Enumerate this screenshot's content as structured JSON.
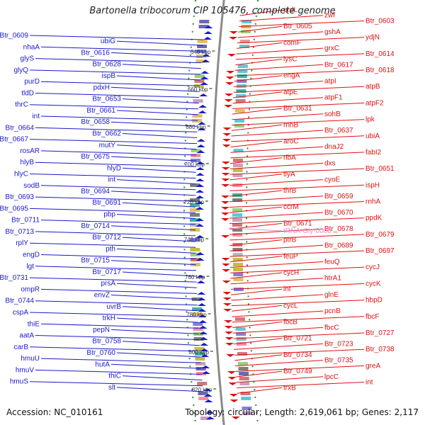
{
  "title": "Bartonella tribocorum CIP 105476, complete genome",
  "footer": {
    "accession": "Accession: NC_010161",
    "summary": "Topology: circular; Length: 2,619,061 bp; Genes: 2,117"
  },
  "colors": {
    "reverse_strand": "#1a1acc",
    "forward_strand": "#dd1111",
    "rna_gene": "#e890c8",
    "backbone": "#8a8a8a",
    "tick": "#2e8b2e"
  },
  "ticks": [
    "640 kbp",
    "660 kbp",
    "680 kbp",
    "700 kbp",
    "720 kbp",
    "740 kbp",
    "760 kbp",
    "780 kbp",
    "800 kbp",
    "820 kbp"
  ],
  "left_genes": [
    "Btr_0609",
    "ubiG",
    "nhaA",
    "Btr_0616",
    "glyS",
    "Btr_0628",
    "glyQ",
    "ispB",
    "purD",
    "pdxH",
    "tldD",
    "Btr_0653",
    "thrC",
    "Btr_0661",
    "int",
    "Btr_0658",
    "Btr_0664",
    "Btr_0662",
    "Btr_0667",
    "mutY",
    "rosAR",
    "Btr_0675",
    "hlyB",
    "hlyD",
    "hlyC",
    "int",
    "sodB",
    "Btr_0694",
    "Btr_0693",
    "Btr_0691",
    "Btr_0695",
    "pbp",
    "Btr_0711",
    "Btr_0714",
    "Btr_0713",
    "Btr_0712",
    "rplY",
    "pth",
    "engD",
    "Btr_0715",
    "lgt",
    "Btr_0717",
    "Btr_0731",
    "prsA",
    "ompR",
    "envZ",
    "Btr_0744",
    "uvrB",
    "cspA",
    "trkH",
    "thiE",
    "pepN",
    "aatA",
    "Btr_0758",
    "carB",
    "Btr_0760",
    "hmuU",
    "hutA",
    "hmuV",
    "thiC",
    "hmuS",
    "slt"
  ],
  "right_genes": [
    "ordL",
    "zwf",
    "Btr_0603",
    "Btr_0605",
    "gshA",
    "ydjN",
    "comF",
    "grxC",
    "Btr_0614",
    "lysC",
    "Btr_0617",
    "Btr_0618",
    "engA",
    "atpI",
    "atpB",
    "atpE",
    "atpF1",
    "atpF2",
    "Btr_0631",
    "sohB",
    "lpk",
    "rnhB",
    "Btr_0637",
    "ubiA",
    "aroC",
    "dnaJ2",
    "fabI2",
    "ribA",
    "dxs",
    "Btr_0651",
    "tlyA",
    "cyoE",
    "ispH",
    "thrB",
    "Btr_0659",
    "rnhA",
    "ccrM",
    "Btr_0670",
    "ppdK",
    "Btr_0671",
    "Btr_0678",
    "Btr_0679",
    "ptrB",
    "Btr_0689",
    "Btr_0697",
    "feuP",
    "feuQ",
    "cycJ",
    "cycH",
    "htrA1",
    "cycK",
    "int",
    "glnE",
    "hbpD",
    "cycL",
    "pcnB",
    "fbcF",
    "fbcB",
    "fbcC",
    "Btr_0727",
    "Btr_0721",
    "Btr_0723",
    "Btr_0738",
    "Btr_0734",
    "Btr_0735",
    "greA",
    "Btr_0749",
    "lpcC",
    "int",
    "trxB"
  ],
  "rna_genes": [
    "tRNA-Gly-0008"
  ]
}
